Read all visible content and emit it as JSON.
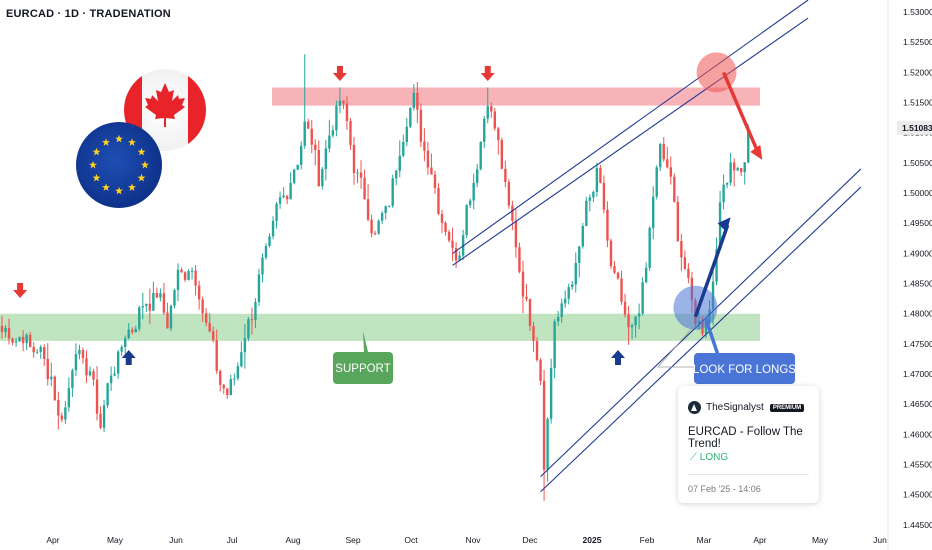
{
  "header": {
    "title": "EURCAD · 1D · TRADENATION"
  },
  "colors": {
    "bull": "#26a69a",
    "bear": "#ef5350",
    "resistance": "#f7a6ad",
    "support": "#b9e0b9",
    "channel": "#1f3a93",
    "arrow_red": "#e53935",
    "arrow_blue": "#1a3a8f",
    "support_label_bg": "#58a55c",
    "longs_label_bg": "#4a74d6"
  },
  "annotations": {
    "support_label": "SUPPORT",
    "longs_label": "LOOK FOR LONGS"
  },
  "card": {
    "brand": "TheSignalyst",
    "badge": "PREMIUM",
    "title": "EURCAD - Follow The Trend!",
    "direction": "LONG",
    "date": "07 Feb '25 - 14:06"
  },
  "chart_data": {
    "type": "candlestick",
    "symbol": "EURCAD",
    "timeframe": "1D",
    "x_ticks": [
      "Apr",
      "May",
      "Jun",
      "Jul",
      "Aug",
      "Sep",
      "Oct",
      "Nov",
      "Dec",
      "2025",
      "Feb",
      "Mar",
      "Apr",
      "May",
      "Jun"
    ],
    "y_ticks": [
      1.53,
      1.525,
      1.52,
      1.515,
      1.51,
      1.505,
      1.5,
      1.495,
      1.49,
      1.485,
      1.48,
      1.475,
      1.47,
      1.465,
      1.46,
      1.455,
      1.45,
      1.445
    ],
    "ylim": [
      1.4425,
      1.532
    ],
    "current_price": "1.51083",
    "resistance_zone": [
      1.5145,
      1.5175
    ],
    "support_zone": [
      1.4755,
      1.48
    ],
    "anchor_path": [
      [
        0,
        1.477
      ],
      [
        5,
        1.476
      ],
      [
        10,
        1.474
      ],
      [
        14,
        1.47
      ],
      [
        16,
        1.462
      ],
      [
        18,
        1.465
      ],
      [
        21,
        1.474
      ],
      [
        25,
        1.47
      ],
      [
        28,
        1.462
      ],
      [
        31,
        1.47
      ],
      [
        35,
        1.476
      ],
      [
        38,
        1.479
      ],
      [
        41,
        1.482
      ],
      [
        44,
        1.483
      ],
      [
        47,
        1.479
      ],
      [
        50,
        1.486
      ],
      [
        53,
        1.488
      ],
      [
        56,
        1.484
      ],
      [
        58,
        1.478
      ],
      [
        60,
        1.474
      ],
      [
        62,
        1.469
      ],
      [
        64,
        1.466
      ],
      [
        66,
        1.47
      ],
      [
        69,
        1.476
      ],
      [
        72,
        1.483
      ],
      [
        75,
        1.49
      ],
      [
        78,
        1.497
      ],
      [
        81,
        1.501
      ],
      [
        84,
        1.505
      ],
      [
        86,
        1.512
      ],
      [
        88,
        1.508
      ],
      [
        90,
        1.503
      ],
      [
        93,
        1.509
      ],
      [
        96,
        1.516
      ],
      [
        98,
        1.511
      ],
      [
        100,
        1.505
      ],
      [
        103,
        1.499
      ],
      [
        106,
        1.493
      ],
      [
        109,
        1.497
      ],
      [
        112,
        1.504
      ],
      [
        115,
        1.513
      ],
      [
        117,
        1.515
      ],
      [
        119,
        1.51
      ],
      [
        122,
        1.503
      ],
      [
        125,
        1.496
      ],
      [
        128,
        1.49
      ],
      [
        130,
        1.491
      ],
      [
        133,
        1.5
      ],
      [
        136,
        1.508
      ],
      [
        138,
        1.516
      ],
      [
        140,
        1.511
      ],
      [
        142,
        1.504
      ],
      [
        145,
        1.495
      ],
      [
        147,
        1.487
      ],
      [
        149,
        1.482
      ],
      [
        151,
        1.476
      ],
      [
        153,
        1.47
      ],
      [
        154,
        1.456
      ],
      [
        155,
        1.462
      ],
      [
        157,
        1.479
      ],
      [
        160,
        1.482
      ],
      [
        163,
        1.488
      ],
      [
        166,
        1.497
      ],
      [
        169,
        1.503
      ],
      [
        171,
        1.497
      ],
      [
        173,
        1.488
      ],
      [
        175,
        1.484
      ],
      [
        177,
        1.479
      ],
      [
        179,
        1.477
      ],
      [
        181,
        1.481
      ],
      [
        183,
        1.488
      ],
      [
        185,
        1.499
      ],
      [
        187,
        1.508
      ],
      [
        189,
        1.504
      ],
      [
        191,
        1.498
      ],
      [
        193,
        1.49
      ],
      [
        195,
        1.484
      ],
      [
        197,
        1.48
      ],
      [
        199,
        1.477
      ],
      [
        201,
        1.481
      ],
      [
        203,
        1.492
      ],
      [
        205,
        1.501
      ],
      [
        207,
        1.506
      ],
      [
        209,
        1.503
      ],
      [
        211,
        1.505
      ],
      [
        212,
        1.5108
      ]
    ],
    "last_index": 212,
    "resistance_touches": [
      96,
      138
    ],
    "support_touches": [
      36,
      175
    ],
    "early_drop": 4,
    "channel": {
      "upper_outer": [
        [
          128,
          1.49
        ],
        [
          229,
          1.532
        ]
      ],
      "upper_inner": [
        [
          128,
          1.488
        ],
        [
          229,
          1.529
        ]
      ],
      "lower_outer": [
        [
          153,
          1.453
        ],
        [
          244,
          1.504
        ]
      ],
      "lower_inner": [
        [
          153,
          1.4505
        ],
        [
          244,
          1.501
        ]
      ]
    },
    "long_arrow": {
      "from": [
        197,
        1.4795
      ],
      "to": [
        207,
        1.496
      ]
    },
    "down_arrow": {
      "from": [
        205,
        1.52
      ],
      "to": [
        216,
        1.5055
      ]
    },
    "circle_top": [
      203,
      1.52
    ],
    "circle_bottom": [
      197,
      1.481
    ]
  }
}
